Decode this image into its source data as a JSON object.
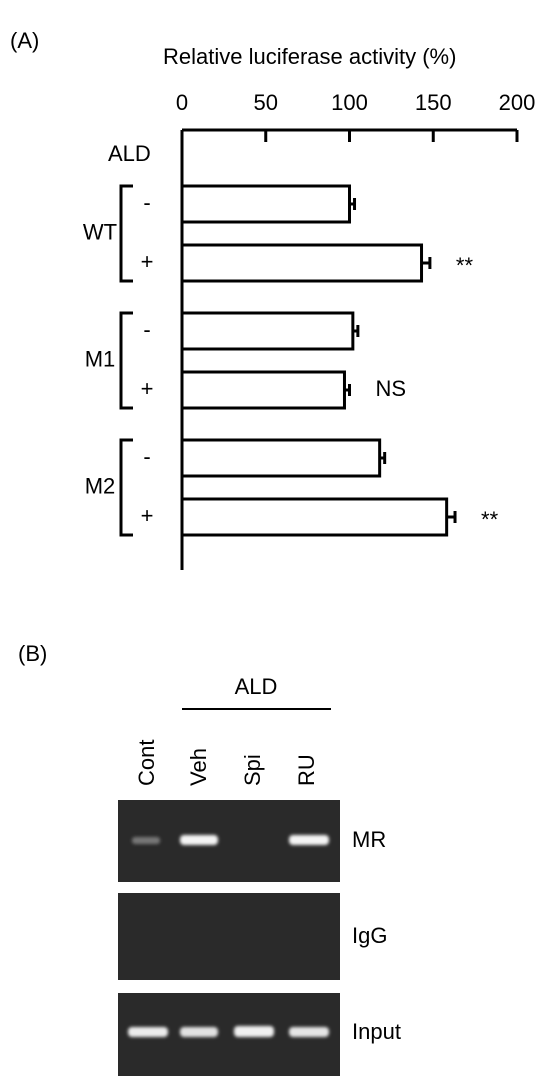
{
  "chart_data": {
    "type": "bar",
    "orientation": "horizontal",
    "panel_label": "(A)",
    "x_label": "Relative luciferase activity  (%)",
    "row_header": "ALD",
    "groups": [
      "WT",
      "M1",
      "M2"
    ],
    "categories": [
      "-",
      "+",
      "-",
      "+",
      "-",
      "+"
    ],
    "values": [
      100,
      143,
      102,
      97,
      118,
      158
    ],
    "errors": [
      3,
      5,
      3,
      3,
      3,
      5
    ],
    "annotations": [
      null,
      "**",
      null,
      "NS",
      null,
      "**"
    ],
    "color": "#ffffff",
    "xlim": [
      0,
      200
    ],
    "xticks": [
      0,
      50,
      100,
      150,
      200
    ]
  },
  "gel": {
    "panel_label": "(B)",
    "treatment": "ALD",
    "lanes": [
      "Cont",
      "Veh",
      "Spi",
      "RU"
    ],
    "rows": [
      "MR",
      "IgG",
      "Input"
    ]
  }
}
